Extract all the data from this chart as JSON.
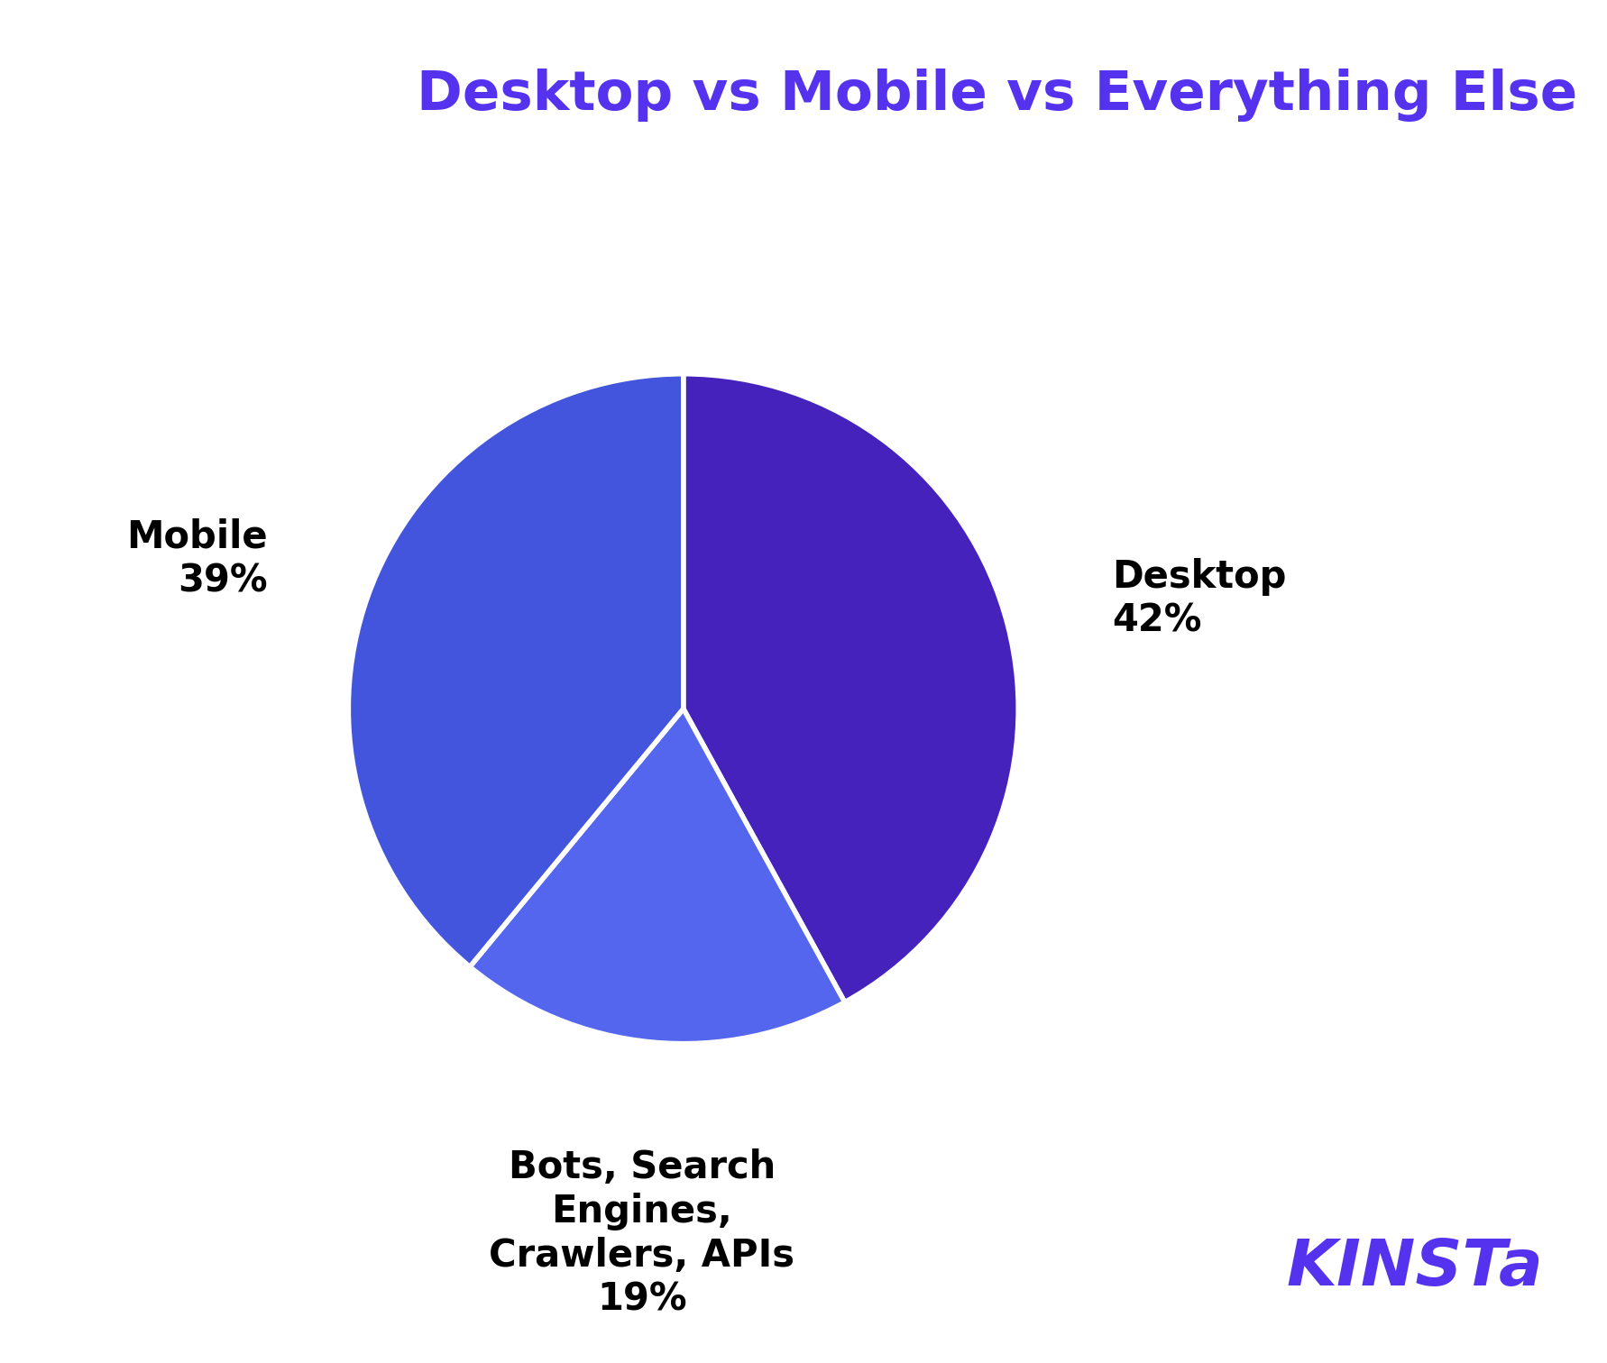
{
  "title": "Desktop vs Mobile vs Everything Else",
  "title_color": "#5533EE",
  "title_fontsize": 44,
  "background_color": "#ffffff",
  "slices": [
    {
      "label": "Desktop\n42%",
      "value": 42,
      "color": "#4422BB",
      "label_color": "#000000",
      "label_fontsize": 30
    },
    {
      "label": "Bots, Search\nEngines,\nCrawlers, APIs\n19%",
      "value": 19,
      "color": "#5566EE",
      "label_color": "#000000",
      "label_fontsize": 30
    },
    {
      "label": "Mobile\n39%",
      "value": 39,
      "color": "#4455DD",
      "label_color": "#000000",
      "label_fontsize": 30
    }
  ],
  "wedge_linecolor": "#ffffff",
  "wedge_linewidth": 4,
  "startangle": 90,
  "kinsta_text": "KINSTa",
  "kinsta_color": "#5533EE",
  "kinsta_fontsize": 52
}
